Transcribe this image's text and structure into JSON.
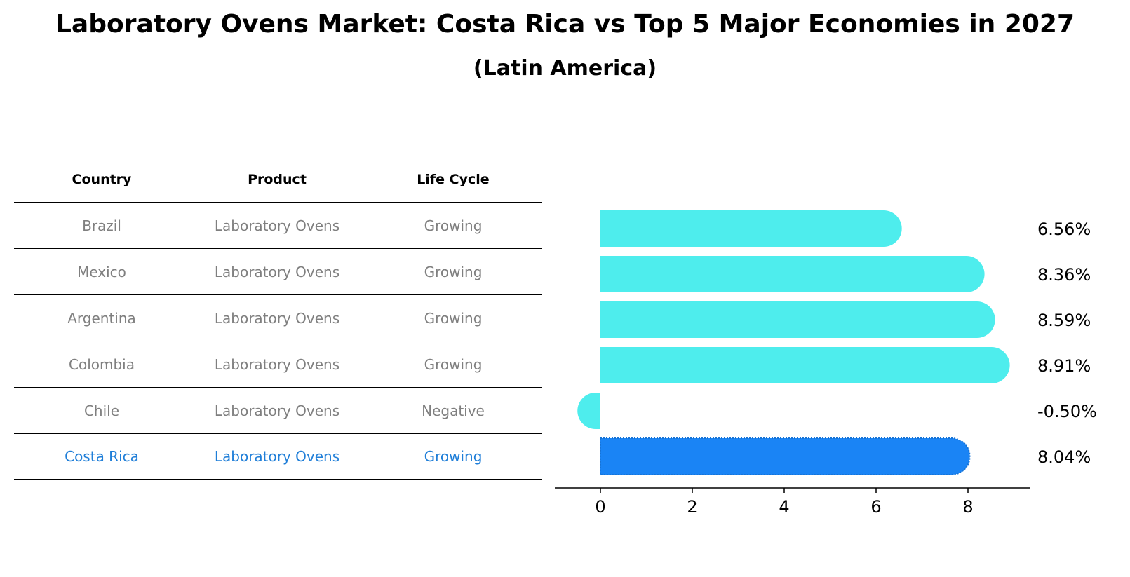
{
  "title": "Laboratory Ovens Market: Costa Rica vs Top 5 Major Economies in 2027",
  "subtitle": "(Latin America)",
  "table": {
    "headers": [
      "Country",
      "Product",
      "Life Cycle"
    ],
    "rows": [
      [
        "Brazil",
        "Laboratory Ovens",
        "Growing"
      ],
      [
        "Mexico",
        "Laboratory Ovens",
        "Growing"
      ],
      [
        "Argentina",
        "Laboratory Ovens",
        "Growing"
      ],
      [
        "Colombia",
        "Laboratory Ovens",
        "Growing"
      ],
      [
        "Chile",
        "Laboratory Ovens",
        "Negative"
      ],
      [
        "Costa Rica",
        "Laboratory Ovens",
        "Growing"
      ]
    ],
    "highlight_row": "Costa Rica"
  },
  "colors": {
    "bar": "#4eeded",
    "highlight_bar": "#1a84f5",
    "highlight_text": "#1f7ed8",
    "muted_text": "#7f7f7f"
  },
  "chart_data": {
    "type": "bar",
    "orientation": "horizontal",
    "categories": [
      "Brazil",
      "Mexico",
      "Argentina",
      "Colombia",
      "Chile",
      "Costa Rica"
    ],
    "values": [
      6.56,
      8.36,
      8.59,
      8.91,
      -0.5,
      8.04
    ],
    "value_labels": [
      "6.56%",
      "8.36%",
      "8.59%",
      "8.91%",
      "-0.50%",
      "8.04%"
    ],
    "xticks": [
      0,
      2,
      4,
      6,
      8
    ],
    "xtick_labels": [
      "0",
      "2",
      "4",
      "6",
      "8"
    ],
    "xlim": [
      -1,
      9.3
    ],
    "highlight": "Costa Rica",
    "title": "",
    "xlabel": "",
    "ylabel": ""
  }
}
